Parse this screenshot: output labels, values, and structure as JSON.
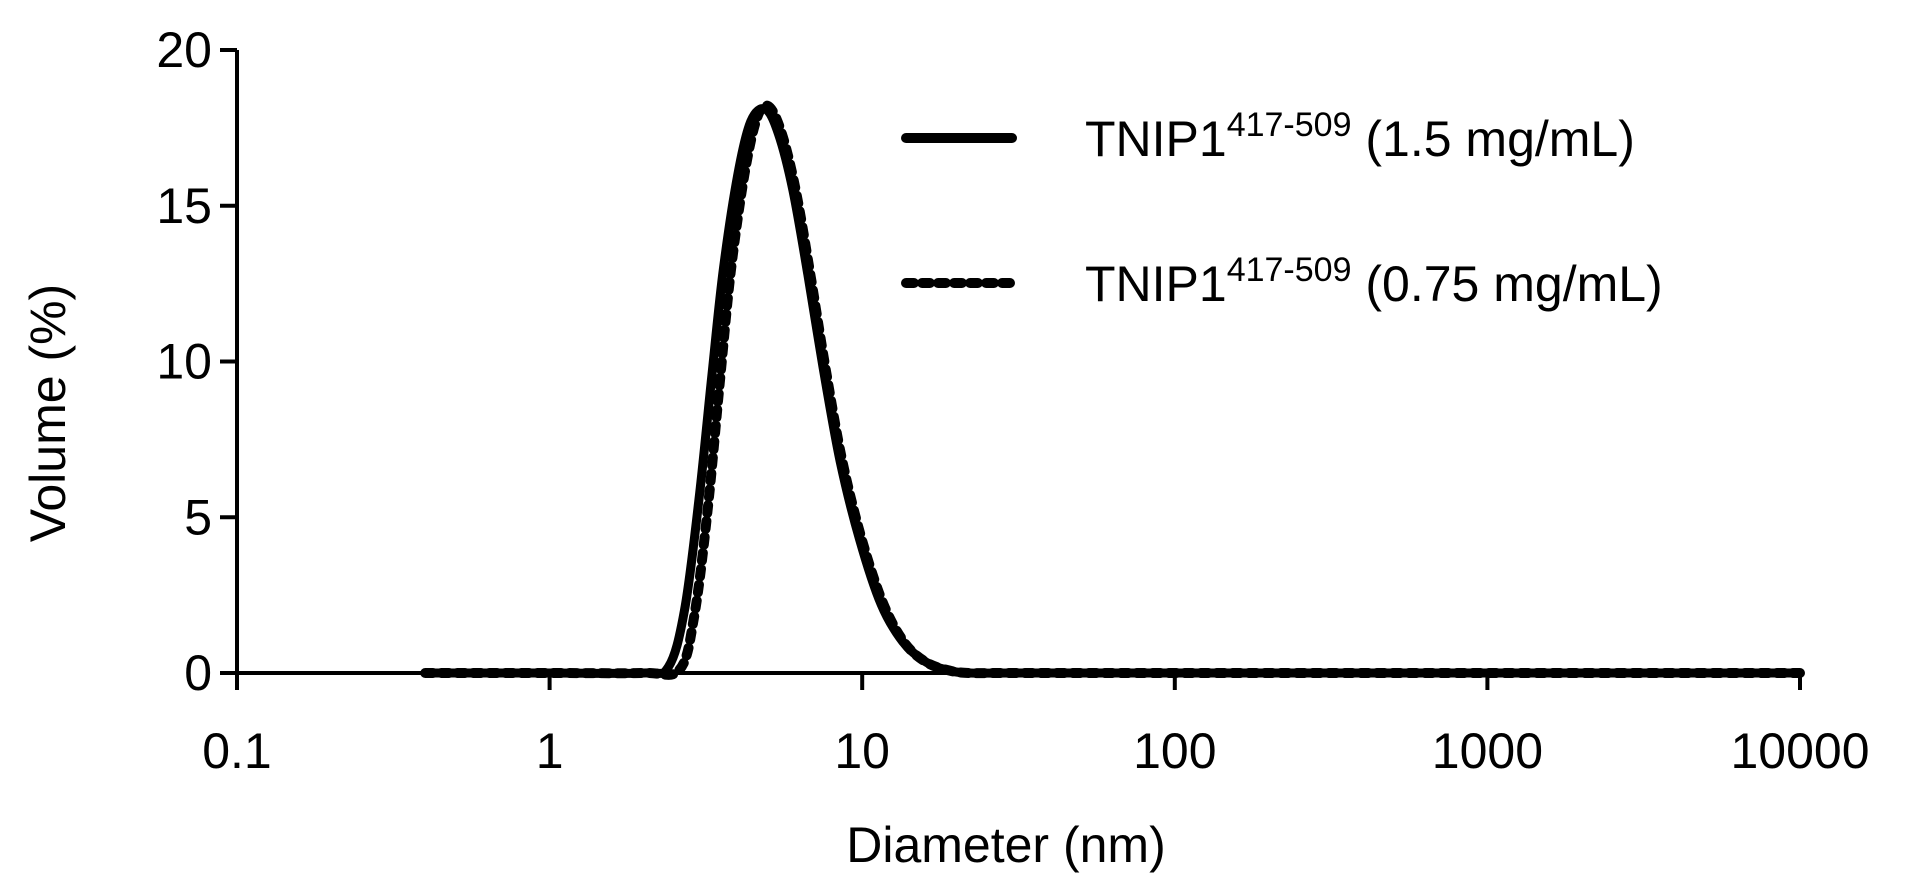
{
  "chart_data": {
    "type": "line",
    "xscale": "log",
    "xlabel": "Diameter (nm)",
    "ylabel": "Volume (%)",
    "xlim": [
      0.1,
      10000
    ],
    "ylim": [
      0,
      20
    ],
    "xticks": [
      "0.1",
      "1",
      "10",
      "100",
      "1000",
      "10000"
    ],
    "yticks": [
      "0",
      "5",
      "10",
      "15",
      "20"
    ],
    "legend_position": "top-right",
    "series": [
      {
        "name": "TNIP1417-509 (1.5 mg/mL)",
        "label_main": "TNIP1",
        "label_sup": "417-509",
        "label_suffix": " (1.5 mg/mL)",
        "style": "solid",
        "color": "#000000",
        "x": [
          0.4,
          1,
          2,
          2.4,
          2.7,
          3.0,
          3.3,
          3.6,
          4.0,
          4.4,
          4.9,
          5.4,
          6.0,
          6.7,
          7.5,
          8.5,
          9.8,
          11.5,
          13.5,
          16,
          19,
          22,
          30,
          100,
          1000,
          10000
        ],
        "y": [
          0,
          0,
          0,
          0.2,
          2.0,
          5.5,
          9.5,
          13.0,
          16.0,
          17.7,
          18.1,
          17.3,
          15.5,
          12.8,
          9.8,
          6.8,
          4.3,
          2.2,
          1.0,
          0.35,
          0.08,
          0,
          0,
          0,
          0,
          0
        ]
      },
      {
        "name": "TNIP1417-509 (0.75 mg/mL)",
        "label_main": "TNIP1",
        "label_sup": "417-509",
        "label_suffix": " (0.75 mg/mL)",
        "style": "dotted",
        "color": "#000000",
        "x": [
          0.4,
          1,
          2,
          2.6,
          2.9,
          3.2,
          3.5,
          3.8,
          4.2,
          4.6,
          5.0,
          5.5,
          6.1,
          6.8,
          7.6,
          8.6,
          9.9,
          11.6,
          13.6,
          16,
          19,
          22,
          30,
          100,
          1000,
          10000
        ],
        "y": [
          0,
          0,
          0,
          0.1,
          1.8,
          5.2,
          9.3,
          12.9,
          16.0,
          17.8,
          18.2,
          17.4,
          15.6,
          12.9,
          9.9,
          6.9,
          4.4,
          2.3,
          1.0,
          0.35,
          0.08,
          0,
          0,
          0,
          0,
          0
        ]
      }
    ]
  }
}
